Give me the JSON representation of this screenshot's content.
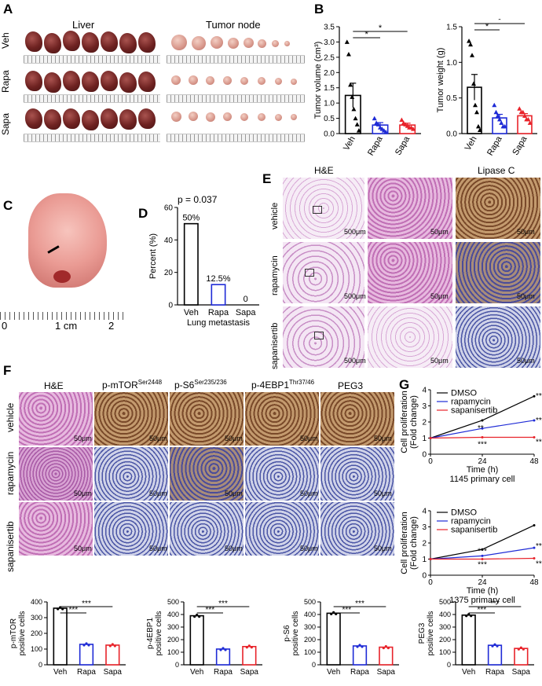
{
  "panels": {
    "A": {
      "label": "A",
      "liver_title": "Liver",
      "tumor_title": "Tumor node",
      "rows": [
        "Veh",
        "Rapa",
        "Sapa"
      ]
    },
    "B": {
      "label": "B"
    },
    "C": {
      "label": "C",
      "ruler_labels": [
        "0",
        "1 cm",
        "2"
      ]
    },
    "D": {
      "label": "D",
      "pvalue": "p = 0.037"
    },
    "E": {
      "label": "E",
      "col_titles": [
        "H&E",
        "Lipase C"
      ],
      "rows": [
        "vehicle",
        "rapamycin",
        "sapanisertib"
      ],
      "scales": [
        "500μm",
        "50μm",
        "50μm"
      ]
    },
    "F": {
      "label": "F",
      "col_titles": [
        "H&E",
        "p-mTOR",
        "p-S6",
        "p-4EBP1",
        "PEG3"
      ],
      "col_sups": [
        "",
        "Ser2448",
        "Ser235/236",
        "Thr37/46",
        ""
      ],
      "rows": [
        "vehicle",
        "rapamycin",
        "sapanisertib"
      ],
      "scale": "50μm"
    },
    "G": {
      "label": "G"
    }
  },
  "colors": {
    "veh": "#000000",
    "rapa": "#1f2bd6",
    "sapa": "#e8232a"
  },
  "chart_data": [
    {
      "id": "B_volume",
      "type": "bar",
      "categories": [
        "Veh",
        "Rapa",
        "Sapa"
      ],
      "values": [
        1.25,
        0.28,
        0.28
      ],
      "errors": [
        0.4,
        0.08,
        0.06
      ],
      "ylabel": "Tumor volume (cm³)",
      "ylim": [
        0,
        3.5
      ],
      "yticks": [
        "0.0",
        "0.5",
        "1.0",
        "1.5",
        "2.0",
        "2.5",
        "3.0",
        "3.5"
      ],
      "sig": [
        "*",
        "*"
      ],
      "points": [
        [
          3.0,
          2.6,
          1.6,
          1.2,
          0.8,
          0.5,
          0.3,
          0.1
        ],
        [
          0.5,
          0.35,
          0.3,
          0.2,
          0.15,
          0.1,
          0.05
        ],
        [
          0.45,
          0.35,
          0.3,
          0.25,
          0.2,
          0.2,
          0.15
        ]
      ]
    },
    {
      "id": "B_weight",
      "type": "bar",
      "categories": [
        "Veh",
        "Rapa",
        "Sapa"
      ],
      "values": [
        0.65,
        0.22,
        0.25
      ],
      "errors": [
        0.18,
        0.05,
        0.03
      ],
      "ylabel": "Tumor weight (g)",
      "ylim": [
        0,
        1.5
      ],
      "yticks": [
        "0.0",
        "0.5",
        "1.0",
        "1.5"
      ],
      "sig": [
        "*",
        "*"
      ],
      "points": [
        [
          1.3,
          1.25,
          1.1,
          0.7,
          0.4,
          0.3,
          0.1,
          0.05
        ],
        [
          0.4,
          0.3,
          0.25,
          0.2,
          0.15,
          0.1,
          0.1
        ],
        [
          0.35,
          0.3,
          0.3,
          0.25,
          0.2,
          0.2,
          0.15
        ]
      ]
    },
    {
      "id": "D_lung",
      "type": "bar",
      "categories": [
        "Veh",
        "Rapa",
        "Sapa"
      ],
      "values": [
        50,
        12.5,
        0
      ],
      "value_labels": [
        "50%",
        "12.5%",
        "0"
      ],
      "ylabel": "Percent (%)",
      "xlabel": "Lung metastasis",
      "ylim": [
        0,
        60
      ],
      "yticks": [
        "0",
        "20",
        "40",
        "60"
      ]
    },
    {
      "id": "G_1145",
      "type": "line",
      "title": "1145 primary cell",
      "x": [
        0,
        24,
        48
      ],
      "xlabel": "Time (h)",
      "ylabel": "Cell proliferation (Fold change)",
      "ylim": [
        0,
        4
      ],
      "yticks": [
        "0",
        "1",
        "2",
        "3",
        "4"
      ],
      "xticks": [
        "0",
        "24",
        "48"
      ],
      "series": [
        {
          "name": "DMSO",
          "values": [
            1,
            2.1,
            3.6
          ]
        },
        {
          "name": "rapamycin",
          "values": [
            1,
            1.6,
            2.1
          ]
        },
        {
          "name": "sapanisertib",
          "values": [
            1,
            1.05,
            1.05
          ]
        }
      ],
      "sig": [
        "**",
        "***",
        "***",
        "***",
        "***"
      ]
    },
    {
      "id": "G_1375",
      "type": "line",
      "title": "1375 primary cell",
      "x": [
        0,
        24,
        48
      ],
      "xlabel": "Time (h)",
      "ylabel": "Cell proliferation (Fold change)",
      "ylim": [
        0,
        4
      ],
      "yticks": [
        "0",
        "1",
        "2",
        "3",
        "4"
      ],
      "xticks": [
        "0",
        "24",
        "48"
      ],
      "series": [
        {
          "name": "DMSO",
          "values": [
            1,
            1.6,
            3.1
          ]
        },
        {
          "name": "rapamycin",
          "values": [
            1,
            1.2,
            1.7
          ]
        },
        {
          "name": "sapanisertib",
          "values": [
            1,
            1.0,
            1.05
          ]
        }
      ],
      "sig": [
        "***",
        "***",
        "***",
        "***"
      ]
    },
    {
      "id": "F_mtor",
      "type": "bar",
      "categories": [
        "Veh",
        "Rapa",
        "Sapa"
      ],
      "values": [
        360,
        130,
        125
      ],
      "ylabel": "p-mTOR positive cells",
      "ylim": [
        0,
        400
      ],
      "yticks": [
        "0",
        "100",
        "200",
        "300",
        "400"
      ],
      "sig": [
        "***",
        "***"
      ]
    },
    {
      "id": "F_4ebp1",
      "type": "bar",
      "categories": [
        "Veh",
        "Rapa",
        "Sapa"
      ],
      "values": [
        390,
        125,
        145
      ],
      "ylabel": "p-4EBP1 positive cells",
      "ylim": [
        0,
        500
      ],
      "yticks": [
        "0",
        "100",
        "200",
        "300",
        "400",
        "500"
      ],
      "sig": [
        "***",
        "***"
      ]
    },
    {
      "id": "F_s6",
      "type": "bar",
      "categories": [
        "Veh",
        "Rapa",
        "Sapa"
      ],
      "values": [
        410,
        150,
        140
      ],
      "ylabel": "p-S6 positive cells",
      "ylim": [
        0,
        500
      ],
      "yticks": [
        "0",
        "100",
        "200",
        "300",
        "400",
        "500"
      ],
      "sig": [
        "***",
        "***"
      ]
    },
    {
      "id": "F_peg3",
      "type": "bar",
      "categories": [
        "Veh",
        "Rapa",
        "Sapa"
      ],
      "values": [
        395,
        155,
        130
      ],
      "ylabel": "PEG3 positive cells",
      "ylim": [
        0,
        500
      ],
      "yticks": [
        "0",
        "100",
        "200",
        "300",
        "400",
        "500"
      ],
      "sig": [
        "***",
        "***"
      ]
    }
  ]
}
